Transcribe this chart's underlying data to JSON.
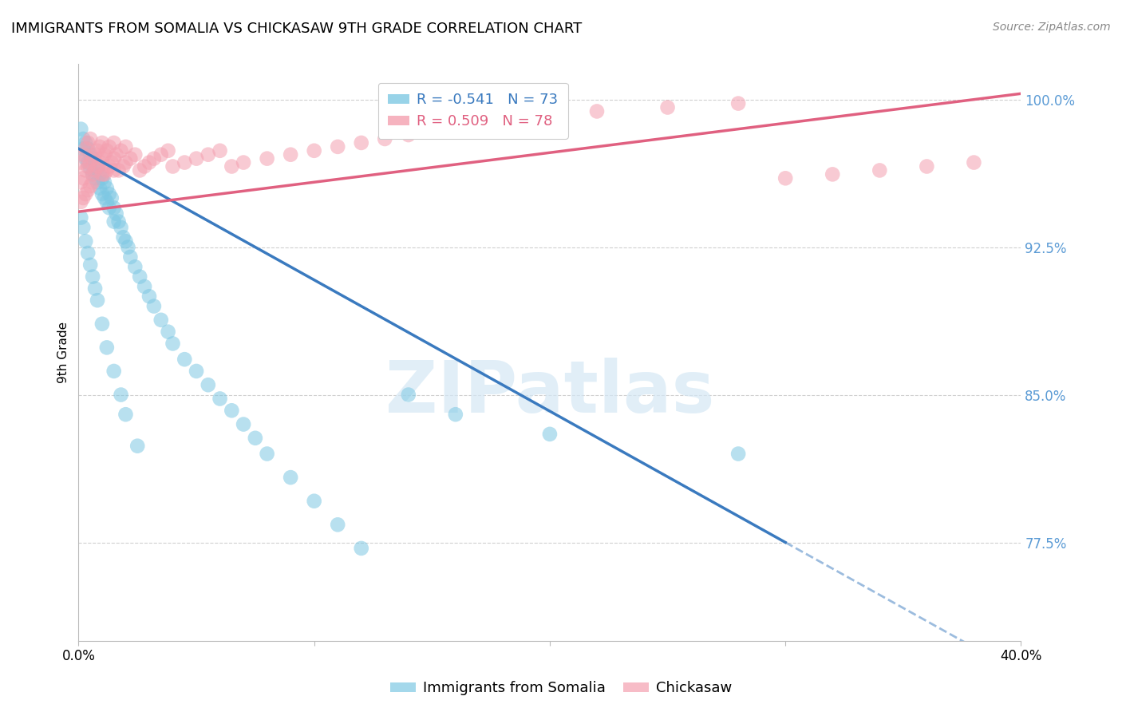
{
  "title": "IMMIGRANTS FROM SOMALIA VS CHICKASAW 9TH GRADE CORRELATION CHART",
  "source": "Source: ZipAtlas.com",
  "ylabel": "9th Grade",
  "ylabel_right_ticks": [
    77.5,
    85.0,
    92.5,
    100.0
  ],
  "ylabel_right_labels": [
    "77.5%",
    "85.0%",
    "92.5%",
    "100.0%"
  ],
  "xmin": 0.0,
  "xmax": 0.4,
  "ymin": 0.725,
  "ymax": 1.018,
  "blue_R": -0.541,
  "blue_N": 73,
  "pink_R": 0.509,
  "pink_N": 78,
  "blue_color": "#7ec8e3",
  "pink_color": "#f4a0b0",
  "blue_line_color": "#3a7abf",
  "pink_line_color": "#e06080",
  "right_axis_color": "#5b9bd5",
  "watermark_color": "#d5e8f5",
  "legend_blue_label": "Immigrants from Somalia",
  "legend_pink_label": "Chickasaw",
  "grid_color": "#d0d0d0",
  "blue_line_x0": 0.0,
  "blue_line_y0": 0.975,
  "blue_line_x1": 0.3,
  "blue_line_y1": 0.775,
  "pink_line_x0": 0.0,
  "pink_line_x1": 0.4,
  "pink_line_y0": 0.943,
  "pink_line_y1": 1.003,
  "blue_scatter_x": [
    0.001,
    0.002,
    0.002,
    0.003,
    0.003,
    0.004,
    0.004,
    0.005,
    0.005,
    0.006,
    0.006,
    0.007,
    0.007,
    0.008,
    0.008,
    0.009,
    0.009,
    0.01,
    0.01,
    0.011,
    0.011,
    0.012,
    0.012,
    0.013,
    0.013,
    0.014,
    0.015,
    0.015,
    0.016,
    0.017,
    0.018,
    0.019,
    0.02,
    0.021,
    0.022,
    0.024,
    0.026,
    0.028,
    0.03,
    0.032,
    0.035,
    0.038,
    0.04,
    0.045,
    0.05,
    0.055,
    0.06,
    0.065,
    0.07,
    0.075,
    0.08,
    0.09,
    0.1,
    0.11,
    0.12,
    0.14,
    0.16,
    0.2,
    0.28,
    0.001,
    0.002,
    0.003,
    0.004,
    0.005,
    0.006,
    0.007,
    0.008,
    0.01,
    0.012,
    0.015,
    0.018,
    0.02,
    0.025
  ],
  "blue_scatter_y": [
    0.985,
    0.98,
    0.975,
    0.978,
    0.97,
    0.975,
    0.968,
    0.972,
    0.965,
    0.97,
    0.962,
    0.968,
    0.96,
    0.965,
    0.958,
    0.962,
    0.955,
    0.96,
    0.952,
    0.958,
    0.95,
    0.955,
    0.948,
    0.952,
    0.945,
    0.95,
    0.945,
    0.938,
    0.942,
    0.938,
    0.935,
    0.93,
    0.928,
    0.925,
    0.92,
    0.915,
    0.91,
    0.905,
    0.9,
    0.895,
    0.888,
    0.882,
    0.876,
    0.868,
    0.862,
    0.855,
    0.848,
    0.842,
    0.835,
    0.828,
    0.82,
    0.808,
    0.796,
    0.784,
    0.772,
    0.85,
    0.84,
    0.83,
    0.82,
    0.94,
    0.935,
    0.928,
    0.922,
    0.916,
    0.91,
    0.904,
    0.898,
    0.886,
    0.874,
    0.862,
    0.85,
    0.84,
    0.824
  ],
  "pink_scatter_x": [
    0.001,
    0.001,
    0.002,
    0.002,
    0.003,
    0.003,
    0.004,
    0.004,
    0.005,
    0.005,
    0.006,
    0.006,
    0.007,
    0.007,
    0.008,
    0.008,
    0.009,
    0.009,
    0.01,
    0.01,
    0.011,
    0.011,
    0.012,
    0.012,
    0.013,
    0.013,
    0.014,
    0.015,
    0.015,
    0.016,
    0.017,
    0.018,
    0.019,
    0.02,
    0.02,
    0.022,
    0.024,
    0.026,
    0.028,
    0.03,
    0.032,
    0.035,
    0.038,
    0.04,
    0.045,
    0.05,
    0.055,
    0.06,
    0.065,
    0.07,
    0.08,
    0.09,
    0.1,
    0.11,
    0.12,
    0.13,
    0.14,
    0.15,
    0.16,
    0.17,
    0.18,
    0.2,
    0.22,
    0.25,
    0.28,
    0.3,
    0.32,
    0.34,
    0.36,
    0.38,
    0.001,
    0.002,
    0.003,
    0.004,
    0.005,
    0.006,
    0.01,
    0.015
  ],
  "pink_scatter_y": [
    0.958,
    0.968,
    0.96,
    0.972,
    0.964,
    0.975,
    0.966,
    0.978,
    0.968,
    0.98,
    0.97,
    0.962,
    0.972,
    0.964,
    0.974,
    0.966,
    0.976,
    0.968,
    0.978,
    0.97,
    0.962,
    0.972,
    0.964,
    0.974,
    0.966,
    0.976,
    0.968,
    0.978,
    0.97,
    0.972,
    0.964,
    0.974,
    0.966,
    0.976,
    0.968,
    0.97,
    0.972,
    0.964,
    0.966,
    0.968,
    0.97,
    0.972,
    0.974,
    0.966,
    0.968,
    0.97,
    0.972,
    0.974,
    0.966,
    0.968,
    0.97,
    0.972,
    0.974,
    0.976,
    0.978,
    0.98,
    0.982,
    0.984,
    0.986,
    0.988,
    0.99,
    0.992,
    0.994,
    0.996,
    0.998,
    0.96,
    0.962,
    0.964,
    0.966,
    0.968,
    0.948,
    0.95,
    0.952,
    0.954,
    0.956,
    0.958,
    0.962,
    0.964
  ]
}
